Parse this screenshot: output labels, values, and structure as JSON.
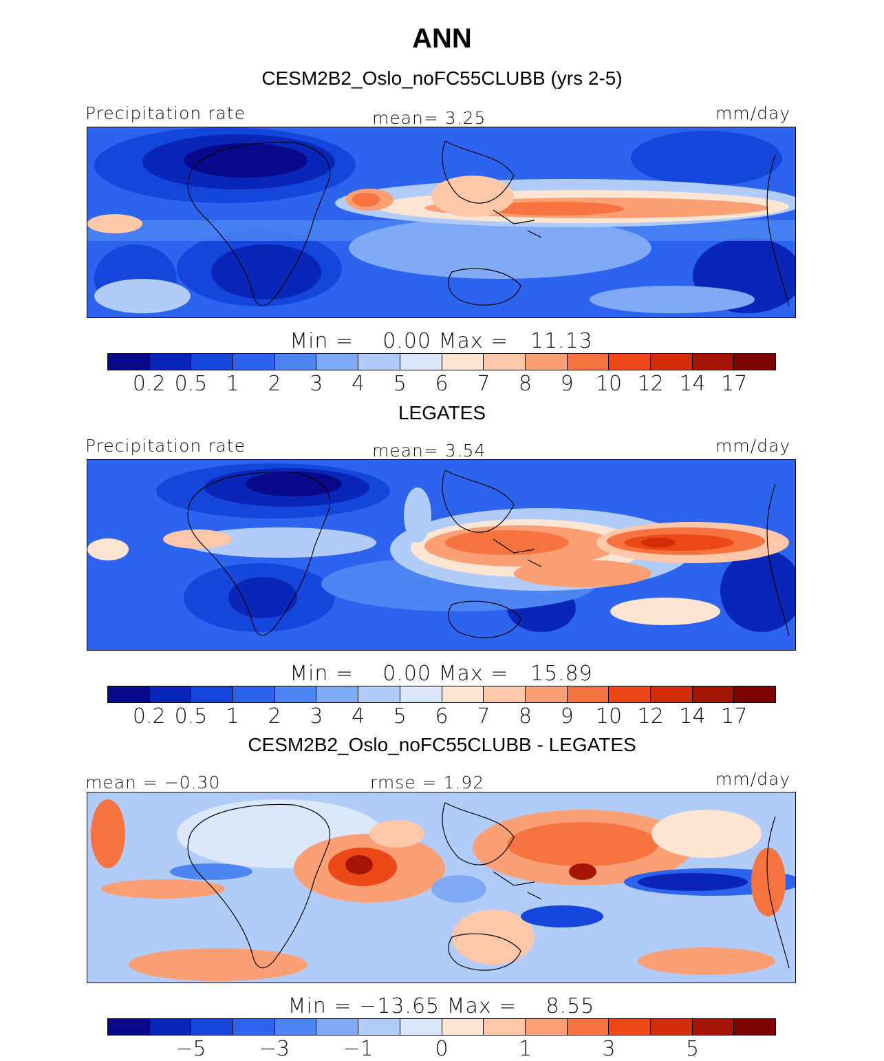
{
  "title": "ANN",
  "palette": [
    "#08088a",
    "#0a26b8",
    "#1446dc",
    "#2c64f0",
    "#4d86f2",
    "#80a9f6",
    "#b2ccfa",
    "#dbe8fc",
    "#fde5d3",
    "#fdc7aa",
    "#fb9f74",
    "#f7733f",
    "#ed4817",
    "#d22c08",
    "#a51506",
    "#7d0303"
  ],
  "panels": [
    {
      "subtitle": "CESM2B2_Oslo_noFC55CLUBB (yrs 2-5)",
      "left_label": "Precipitation rate",
      "center_label": "mean=   3.25",
      "right_label": "mm/day",
      "variable": "Precipitation rate",
      "units": "mm/day",
      "mean": 3.25,
      "min": 0.0,
      "max": 11.13,
      "minmax_text": "Min =    0.00 Max =   11.13",
      "colorbar_ticks": [
        "0.2",
        "0.5",
        "1",
        "2",
        "3",
        "4",
        "5",
        "6",
        "7",
        "8",
        "9",
        "10",
        "12",
        "14",
        "17"
      ]
    },
    {
      "subtitle": "LEGATES",
      "left_label": "Precipitation rate",
      "center_label": "mean=   3.54",
      "right_label": "mm/day",
      "variable": "Precipitation rate",
      "units": "mm/day",
      "mean": 3.54,
      "min": 0.0,
      "max": 15.89,
      "minmax_text": "Min =    0.00 Max =   15.89",
      "colorbar_ticks": [
        "0.2",
        "0.5",
        "1",
        "2",
        "3",
        "4",
        "5",
        "6",
        "7",
        "8",
        "9",
        "10",
        "12",
        "14",
        "17"
      ]
    },
    {
      "subtitle": "CESM2B2_Oslo_noFC55CLUBB - LEGATES",
      "left_label": "mean =  −0.30",
      "center_label": "rmse =   1.92",
      "right_label": "mm/day",
      "units": "mm/day",
      "mean": -0.3,
      "rmse": 1.92,
      "min": -13.65,
      "max": 8.55,
      "minmax_text": "Min = −13.65 Max =    8.55",
      "colorbar_ticks": [
        "",
        "−5",
        "",
        "−3",
        "",
        "−1",
        "",
        "0",
        "",
        "1",
        "",
        "3",
        "",
        "5",
        ""
      ]
    }
  ]
}
